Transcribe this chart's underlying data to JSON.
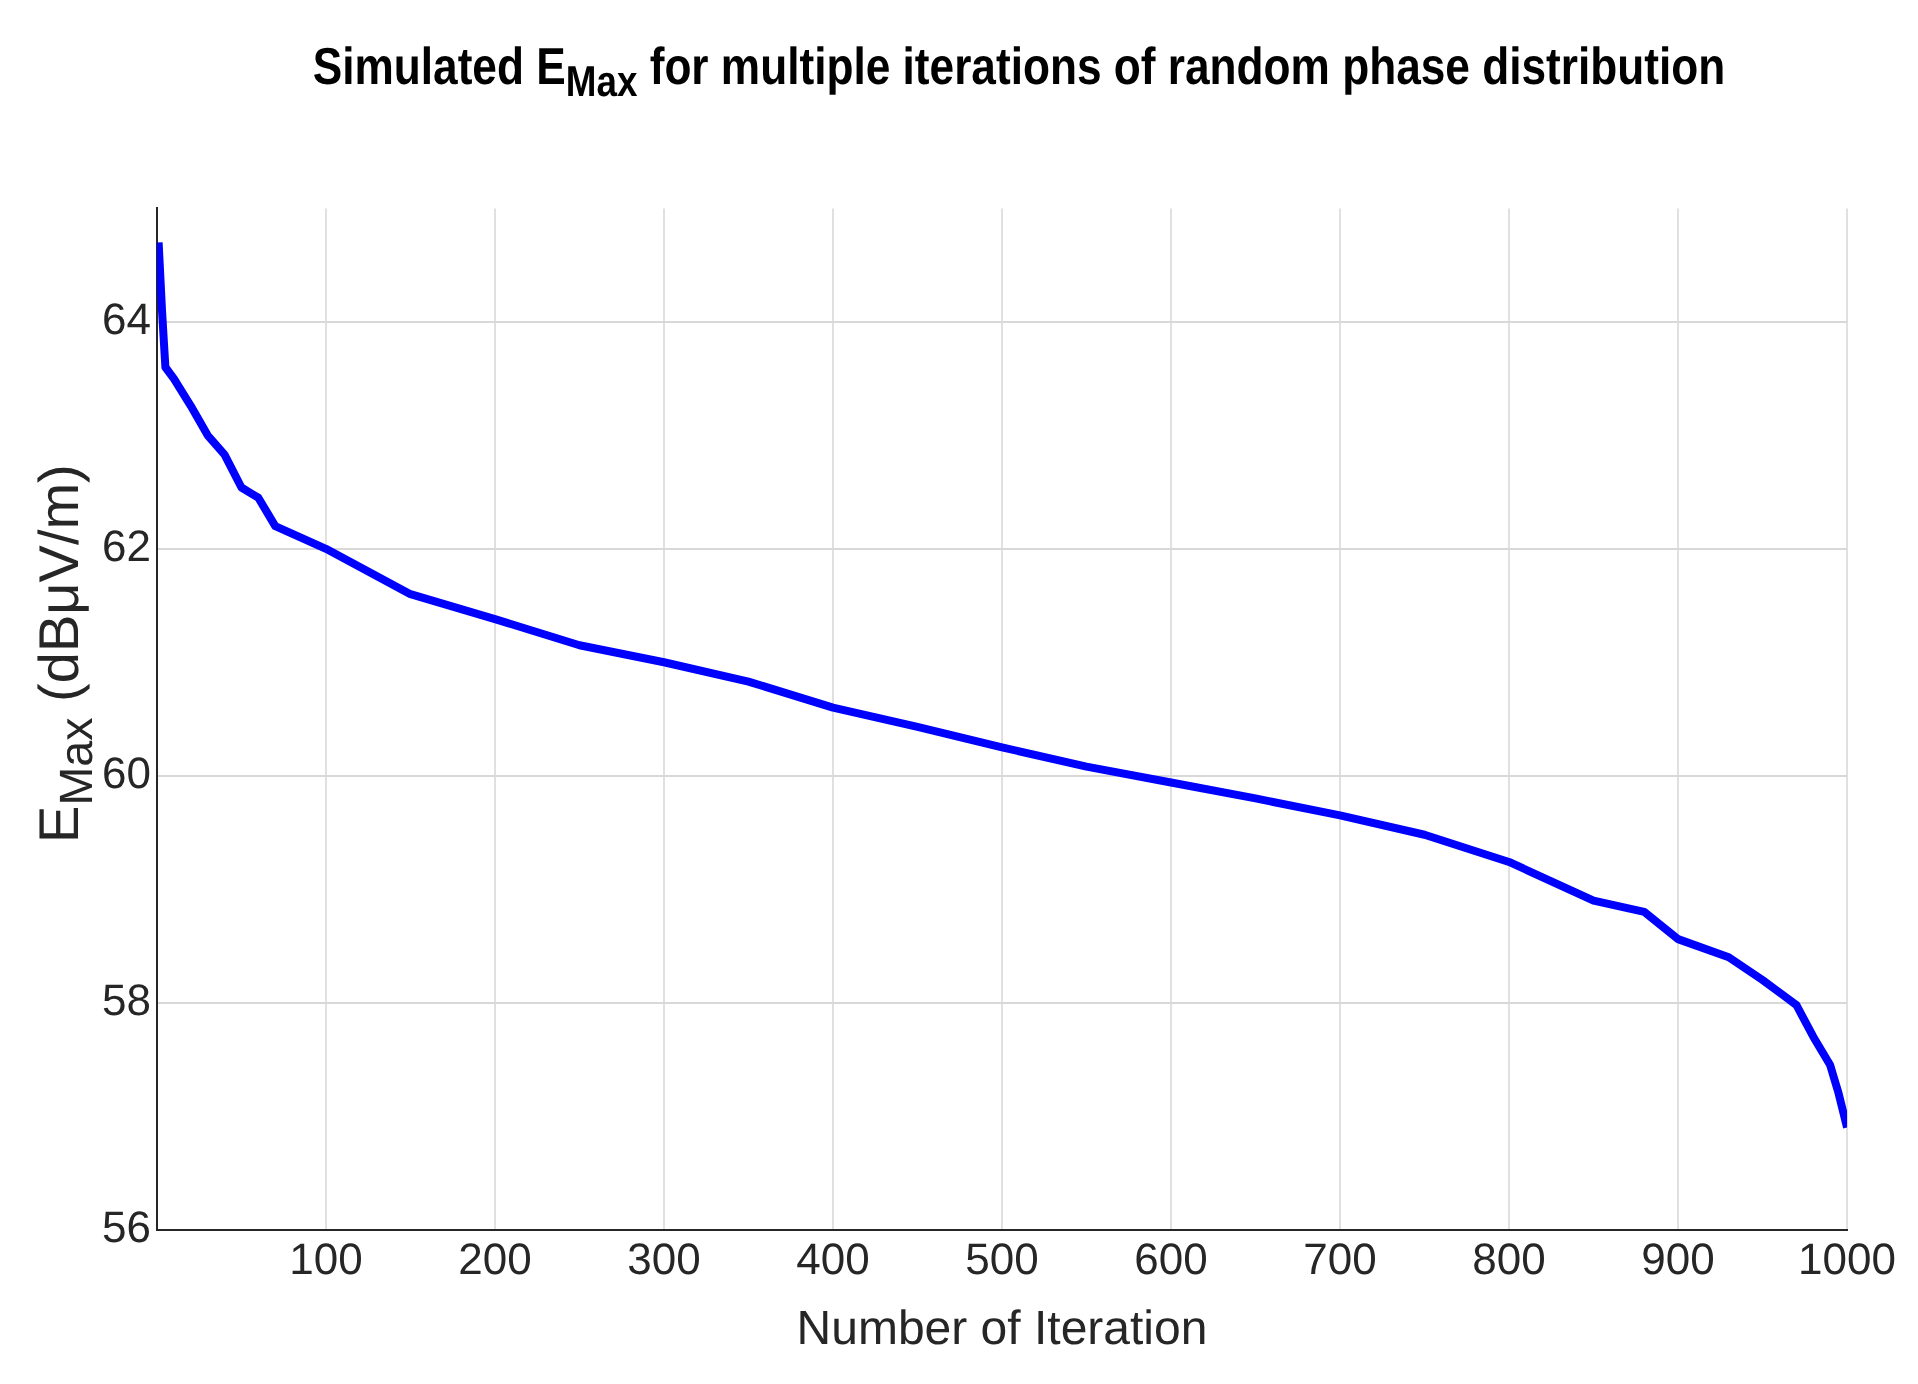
{
  "chart_data": {
    "type": "line",
    "title": "Simulated E$_{Max}$ for multiple iterations of random phase distribution",
    "xlabel": "Number of Iteration",
    "ylabel": "E$_{Max}$ (dBμV/m)",
    "xlim": [
      0,
      1000
    ],
    "ylim": [
      56,
      65
    ],
    "xticks": [
      100,
      200,
      300,
      400,
      500,
      600,
      700,
      800,
      900,
      1000
    ],
    "yticks": [
      56,
      58,
      60,
      62,
      64
    ],
    "grid": true,
    "legend": false,
    "series": [
      {
        "color": "#0000ff",
        "x": [
          1,
          3,
          5,
          10,
          20,
          30,
          40,
          50,
          60,
          70,
          100,
          150,
          200,
          250,
          300,
          350,
          400,
          450,
          500,
          550,
          600,
          650,
          700,
          750,
          800,
          850,
          880,
          900,
          930,
          950,
          970,
          980,
          990,
          995,
          1000
        ],
        "values": [
          64.7,
          64.1,
          63.6,
          63.5,
          63.26,
          63.0,
          62.83,
          62.54,
          62.45,
          62.2,
          62.0,
          61.6,
          61.38,
          61.15,
          61.0,
          60.83,
          60.6,
          60.43,
          60.25,
          60.08,
          59.94,
          59.8,
          59.65,
          59.48,
          59.24,
          58.9,
          58.8,
          58.56,
          58.4,
          58.2,
          57.98,
          57.7,
          57.45,
          57.2,
          56.9
        ]
      }
    ]
  }
}
